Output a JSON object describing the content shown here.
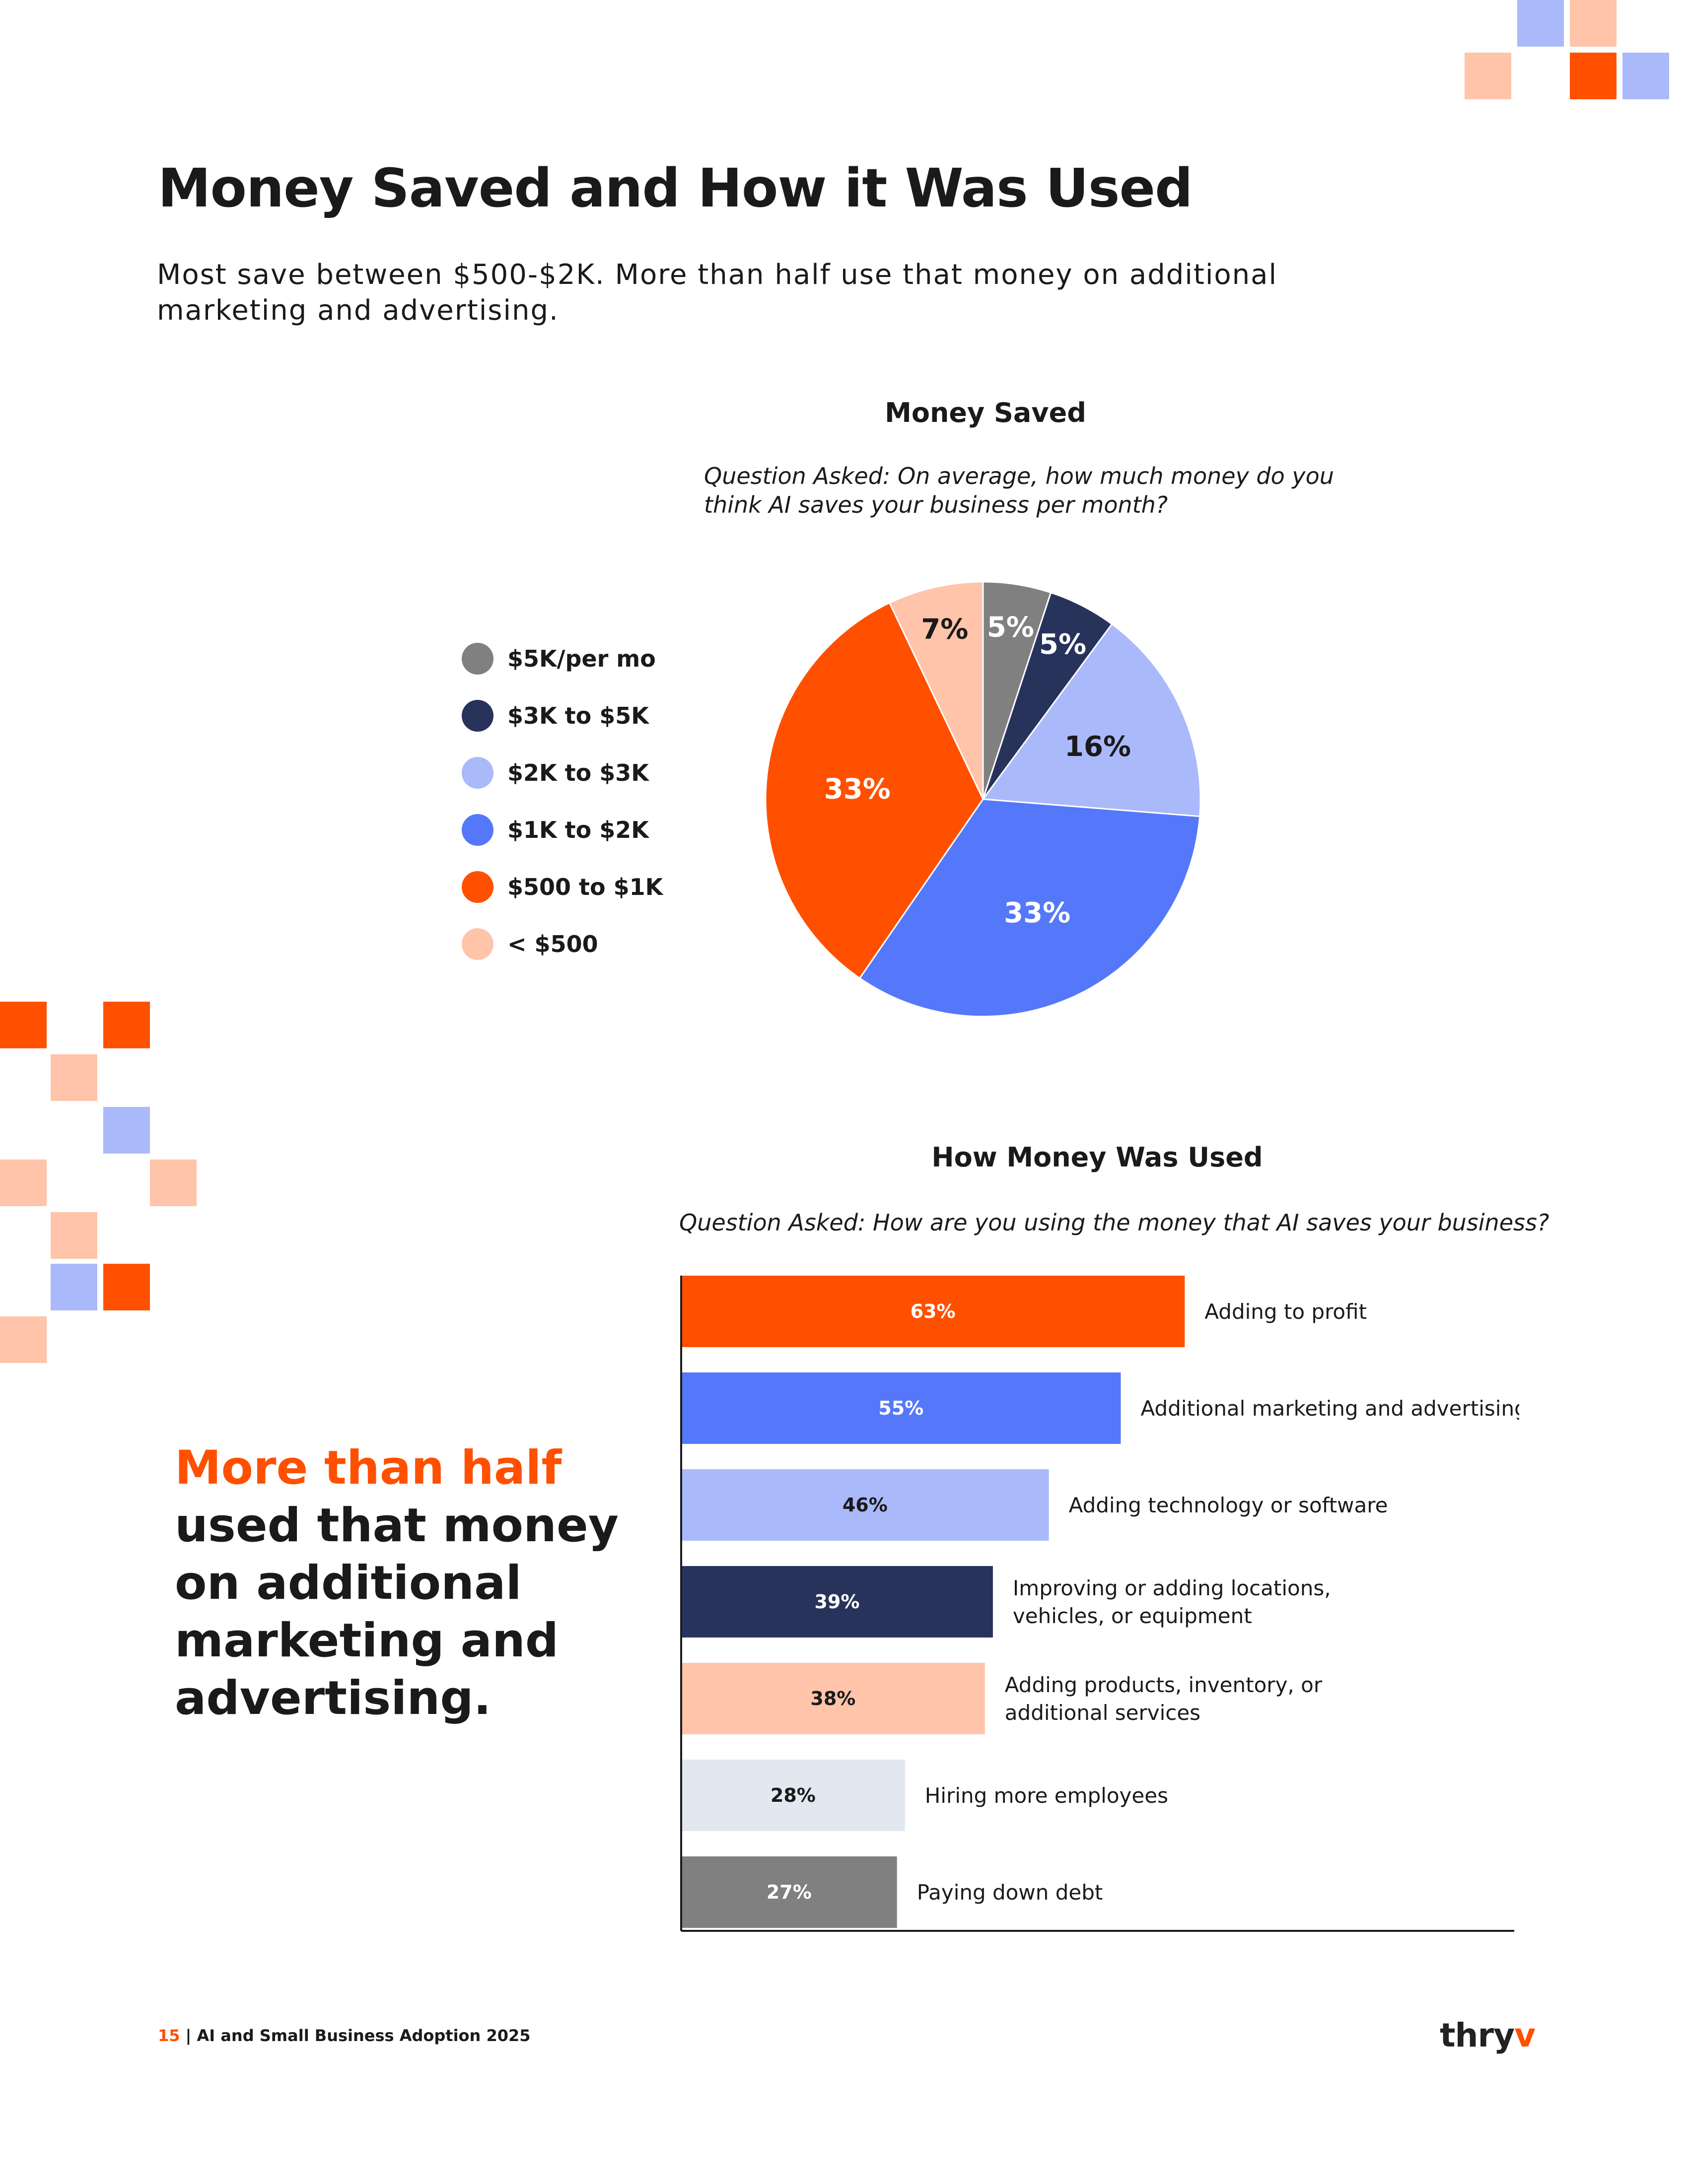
{
  "page": {
    "title": "Money Saved and How it Was Used",
    "subtitle": "Most save between $500-$2K. More than half use that money on additional marketing and advertising."
  },
  "colors": {
    "accent": "#ff5000",
    "gray": "#808080",
    "navy": "#28335c",
    "light_blue": "#aab9fa",
    "blue": "#5578fa",
    "orange": "#ff5000",
    "peach": "#ffc4aa",
    "pale_blue": "#e1e8f0"
  },
  "callout": {
    "highlight": "More than half",
    "text": "used that money on additional marketing and advertising."
  },
  "footer": {
    "page_number": "15",
    "separator": " | ",
    "doc_title": "AI and Small Business Adoption 2025"
  },
  "brand": {
    "logo_text": "thry",
    "logo_v": "v"
  },
  "chart_data": [
    {
      "type": "pie",
      "title": "Money Saved",
      "question": "Question Asked: On average, how much money do you think AI saves your business per month?",
      "legend_position": "left",
      "labels": [
        "$5K/per mo",
        "$3K to $5K",
        "$2K to $3K",
        "$1K to $2K",
        "$500 to $1K",
        "< $500"
      ],
      "values": [
        5,
        5,
        16,
        33,
        33,
        7
      ],
      "value_labels": [
        "5%",
        "5%",
        "16%",
        "33%",
        "33%",
        "7%"
      ],
      "colors": [
        "#808080",
        "#28335c",
        "#aab9fa",
        "#5578fa",
        "#ff5000",
        "#ffc4aa"
      ],
      "label_colors": [
        "#ffffff",
        "#ffffff",
        "#1a1a1a",
        "#ffffff",
        "#ffffff",
        "#1a1a1a"
      ]
    },
    {
      "type": "bar",
      "orientation": "horizontal",
      "title": "How Money Was Used",
      "question": "Question Asked: How are you using the money that AI saves your business?",
      "categories": [
        "Adding to profit",
        "Additional marketing and advertising",
        "Adding technology or software",
        "Improving or adding locations, vehicles, or equipment",
        "Adding products, inventory, or additional services",
        "Hiring more employees",
        "Paying down debt"
      ],
      "category_lines": [
        [
          "Adding to profit"
        ],
        [
          "Additional marketing and advertising"
        ],
        [
          "Adding technology or software"
        ],
        [
          "Improving or adding locations,",
          "vehicles, or equipment"
        ],
        [
          "Adding products, inventory, or",
          "additional services"
        ],
        [
          "Hiring more employees"
        ],
        [
          "Paying down debt"
        ]
      ],
      "values": [
        63,
        55,
        46,
        39,
        38,
        28,
        27
      ],
      "value_labels": [
        "63%",
        "55%",
        "46%",
        "39%",
        "38%",
        "28%",
        "27%"
      ],
      "colors": [
        "#ff5000",
        "#5578fa",
        "#aab9fa",
        "#28335c",
        "#ffc4aa",
        "#e1e8f0",
        "#808080"
      ],
      "label_colors": [
        "#ffffff",
        "#ffffff",
        "#1a1a1a",
        "#ffffff",
        "#1a1a1a",
        "#1a1a1a",
        "#ffffff"
      ],
      "xlim": [
        0,
        100
      ]
    }
  ]
}
